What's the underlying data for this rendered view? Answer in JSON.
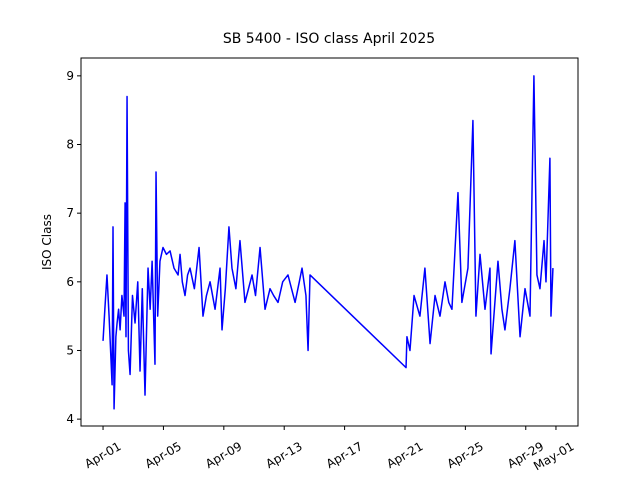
{
  "chart_data": {
    "type": "line",
    "title": "SB 5400 - ISO class April 2025",
    "ylabel": "ISO Class",
    "series": [
      {
        "name": "ISO class",
        "color": "#0000ff",
        "x": [
          1.0,
          1.12,
          1.26,
          1.4,
          1.6,
          1.66,
          1.73,
          1.85,
          1.93,
          2.03,
          2.13,
          2.25,
          2.39,
          2.46,
          2.52,
          2.59,
          2.68,
          2.79,
          2.95,
          3.12,
          3.3,
          3.45,
          3.6,
          3.78,
          3.98,
          4.12,
          4.25,
          4.44,
          4.51,
          4.62,
          4.77,
          4.97,
          5.2,
          5.44,
          5.7,
          5.97,
          6.1,
          6.25,
          6.43,
          6.6,
          6.76,
          7.05,
          7.36,
          7.62,
          7.85,
          8.09,
          8.42,
          8.75,
          8.88,
          9.1,
          9.34,
          9.54,
          9.8,
          10.07,
          10.4,
          10.87,
          11.1,
          11.4,
          11.73,
          12.06,
          12.3,
          12.59,
          12.9,
          13.25,
          13.72,
          14.0,
          14.18,
          14.44,
          14.58,
          14.71,
          21.07,
          21.13,
          21.33,
          21.6,
          21.99,
          22.32,
          22.66,
          22.99,
          23.32,
          23.65,
          23.9,
          24.11,
          24.51,
          24.77,
          25.17,
          25.5,
          25.7,
          25.97,
          26.3,
          26.63,
          26.7,
          27.16,
          27.42,
          27.62,
          27.95,
          28.28,
          28.62,
          28.95,
          29.28,
          29.54,
          29.74,
          29.94,
          30.21,
          30.34,
          30.6,
          30.67,
          30.8
        ],
        "values": [
          5.14,
          5.6,
          6.1,
          5.5,
          4.5,
          6.8,
          4.15,
          5.2,
          5.4,
          5.6,
          5.3,
          5.8,
          5.5,
          7.15,
          5.2,
          8.7,
          5.0,
          4.65,
          5.8,
          5.4,
          6.0,
          4.7,
          5.9,
          4.35,
          6.2,
          5.6,
          6.3,
          4.8,
          7.6,
          5.5,
          6.3,
          6.5,
          6.4,
          6.45,
          6.2,
          6.1,
          6.4,
          6.0,
          5.8,
          6.1,
          6.2,
          5.9,
          6.5,
          5.5,
          5.8,
          6.0,
          5.6,
          6.2,
          5.3,
          5.9,
          6.8,
          6.2,
          5.9,
          6.6,
          5.7,
          6.1,
          5.8,
          6.5,
          5.6,
          5.9,
          5.8,
          5.7,
          6.0,
          6.1,
          5.7,
          6.0,
          6.2,
          5.8,
          5.0,
          6.1,
          4.75,
          5.2,
          5.0,
          5.8,
          5.5,
          6.2,
          5.1,
          5.8,
          5.5,
          6.0,
          5.7,
          5.6,
          7.3,
          5.7,
          6.2,
          8.35,
          5.5,
          6.4,
          5.6,
          6.2,
          4.95,
          6.3,
          5.6,
          5.3,
          5.9,
          6.6,
          5.2,
          5.9,
          5.5,
          9.0,
          6.1,
          5.9,
          6.6,
          6.0,
          7.8,
          5.5,
          6.2
        ]
      }
    ],
    "xlim": [
      -0.46,
      32.46
    ],
    "xticks": [
      {
        "value": 1,
        "label": "Apr-01"
      },
      {
        "value": 5,
        "label": "Apr-05"
      },
      {
        "value": 9,
        "label": "Apr-09"
      },
      {
        "value": 13,
        "label": "Apr-13"
      },
      {
        "value": 17,
        "label": "Apr-17"
      },
      {
        "value": 21,
        "label": "Apr-21"
      },
      {
        "value": 25,
        "label": "Apr-25"
      },
      {
        "value": 29,
        "label": "Apr-29"
      },
      {
        "value": 31,
        "label": "May-01"
      }
    ],
    "ylim": [
      3.9,
      9.26
    ],
    "yticks": [
      4,
      5,
      6,
      7,
      8,
      9
    ],
    "grid": false
  }
}
